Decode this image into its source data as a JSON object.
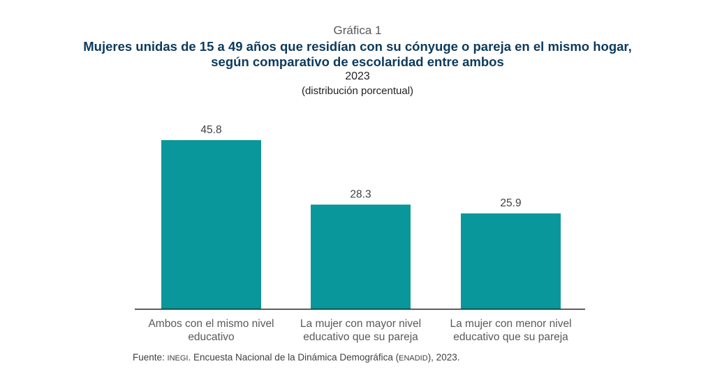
{
  "chart_data": {
    "type": "bar",
    "kicker": "Gráfica 1",
    "title_line1": "Mujeres unidas de 15 a 49 años que residían con su cónyuge o pareja en el mismo hogar,",
    "title_line2": "según comparativo de escolaridad entre ambos",
    "subtitle_year": "2023",
    "subtitle_unit": "(distribución porcentual)",
    "categories": [
      "Ambos con el mismo nivel educativo",
      "La mujer con mayor nivel educativo que su pareja",
      "La mujer con menor nivel educativo que su pareja"
    ],
    "values": [
      45.8,
      28.3,
      25.9
    ],
    "data_labels": [
      "45.8",
      "28.3",
      "25.9"
    ],
    "ylim": [
      0,
      50
    ],
    "grid": false,
    "bar_color": "#0a979b",
    "xlabel": "",
    "ylabel": ""
  },
  "source": {
    "prefix": "Fuente: ",
    "org": "INEGI",
    "middle": ". Encuesta Nacional de la Dinámica Demográfica (",
    "survey": "ENADID",
    "suffix": "), 2023."
  }
}
